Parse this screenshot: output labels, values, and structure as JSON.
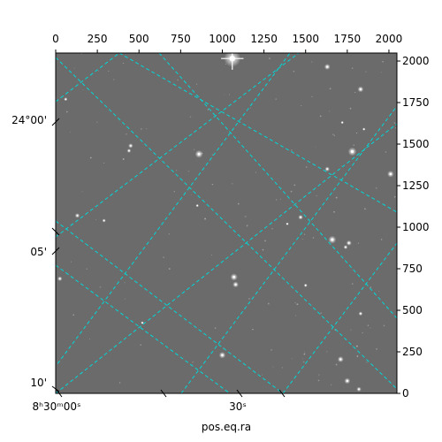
{
  "chart_data": {
    "type": "scatter",
    "title": "",
    "xlabel": "pos.eq.ra",
    "ylabel": "",
    "pixel_axes": {
      "x_ticks": [
        0,
        250,
        500,
        750,
        1000,
        1250,
        1500,
        1750,
        2000
      ],
      "y_ticks": [
        0,
        250,
        500,
        750,
        1000,
        1250,
        1500,
        1750,
        2000
      ],
      "xlim": [
        0,
        2048
      ],
      "ylim": [
        0,
        2048
      ]
    },
    "world_axes": {
      "ra_tick_labels": [
        "8ʰ30ᵐ00ˢ",
        "30ˢ"
      ],
      "dec_tick_labels": [
        "24°00'",
        "05'",
        "10'"
      ]
    },
    "coordinate_grid": {
      "color": "#00d8d8",
      "style": "dashed"
    },
    "image_background": "#6b6b6b",
    "stars": [
      {
        "x": 1060,
        "y": 2015,
        "r": 28,
        "spikes": true
      },
      {
        "x": 1630,
        "y": 1965,
        "r": 10
      },
      {
        "x": 1830,
        "y": 1830,
        "r": 10
      },
      {
        "x": 60,
        "y": 1770,
        "r": 6
      },
      {
        "x": 1720,
        "y": 1630,
        "r": 5
      },
      {
        "x": 450,
        "y": 1490,
        "r": 8
      },
      {
        "x": 440,
        "y": 1460,
        "r": 7
      },
      {
        "x": 860,
        "y": 1440,
        "r": 13
      },
      {
        "x": 1780,
        "y": 1455,
        "r": 14
      },
      {
        "x": 1630,
        "y": 1350,
        "r": 8
      },
      {
        "x": 2010,
        "y": 1320,
        "r": 11
      },
      {
        "x": 130,
        "y": 1070,
        "r": 8
      },
      {
        "x": 290,
        "y": 1040,
        "r": 6
      },
      {
        "x": 1470,
        "y": 1060,
        "r": 8
      },
      {
        "x": 1660,
        "y": 925,
        "r": 13
      },
      {
        "x": 1760,
        "y": 905,
        "r": 9
      },
      {
        "x": 1740,
        "y": 880,
        "r": 7
      },
      {
        "x": 1390,
        "y": 1020,
        "r": 5
      },
      {
        "x": 850,
        "y": 1130,
        "r": 5
      },
      {
        "x": 25,
        "y": 690,
        "r": 8
      },
      {
        "x": 1070,
        "y": 700,
        "r": 12
      },
      {
        "x": 1080,
        "y": 655,
        "r": 10
      },
      {
        "x": 1500,
        "y": 650,
        "r": 6
      },
      {
        "x": 1830,
        "y": 480,
        "r": 7
      },
      {
        "x": 1000,
        "y": 230,
        "r": 11
      },
      {
        "x": 1710,
        "y": 205,
        "r": 10
      },
      {
        "x": 1750,
        "y": 75,
        "r": 10
      },
      {
        "x": 1820,
        "y": 25,
        "r": 8
      },
      {
        "x": 520,
        "y": 425,
        "r": 5
      },
      {
        "x": 1850,
        "y": 1590,
        "r": 5
      }
    ]
  }
}
